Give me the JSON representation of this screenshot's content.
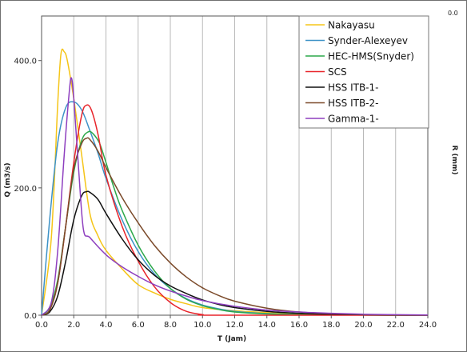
{
  "chart_data": {
    "type": "line",
    "title": "",
    "xlabel": "T (Jam)",
    "ylabel": "Q (m3/s)",
    "y2label": "R (mm)",
    "y2tick": "0.0",
    "xlim": [
      0,
      24
    ],
    "ylim": [
      0,
      470
    ],
    "xticks": [
      0,
      2,
      4,
      6,
      8,
      10,
      12,
      14,
      16,
      18,
      20,
      22,
      24
    ],
    "yticks": [
      0,
      200,
      400
    ],
    "xtick_labels": [
      "0.0",
      "2.0",
      "4.0",
      "6.0",
      "8.0",
      "10.0",
      "12.0",
      "14.0",
      "16.0",
      "18.0",
      "20.0",
      "22.0",
      "24.0"
    ],
    "ytick_labels": [
      "0.0",
      "200.0",
      "400.0"
    ],
    "grid": "vertical",
    "legend_position": "top-right",
    "series": [
      {
        "name": "Nakayasu",
        "color": "#f5c518",
        "x": [
          0,
          0.6,
          1.0,
          1.2,
          1.4,
          1.6,
          2.0,
          2.5,
          3.0,
          3.5,
          4.0,
          5.0,
          6.0,
          7.0,
          8.0,
          9.0,
          10.0,
          12.0,
          14.0,
          16.0,
          18.0,
          20.0,
          22.0,
          24.0
        ],
        "y": [
          0,
          120,
          330,
          410,
          414,
          400,
          340,
          250,
          160,
          125,
          102,
          73,
          48,
          35,
          25,
          18,
          12,
          7,
          4,
          2,
          1,
          0.5,
          0,
          0
        ]
      },
      {
        "name": "Synder-Alexeyev",
        "color": "#3d92c7",
        "x": [
          0,
          0.5,
          1.0,
          1.5,
          2.0,
          2.5,
          3.0,
          3.5,
          4.0,
          5.0,
          6.0,
          7.0,
          8.0,
          9.0,
          10.0,
          11.0,
          12.0,
          14.0,
          16.0,
          18.0,
          20.0,
          22.0,
          24.0
        ],
        "y": [
          0,
          150,
          270,
          326,
          335,
          322,
          290,
          255,
          215,
          150,
          100,
          65,
          42,
          26,
          16,
          10,
          6,
          2.5,
          1,
          0.4,
          0.2,
          0,
          0
        ]
      },
      {
        "name": "HEC-HMS(Snyder)",
        "color": "#2ca84a",
        "x": [
          0,
          0.5,
          1.0,
          1.5,
          2.0,
          2.5,
          2.9,
          3.2,
          3.6,
          4.0,
          4.5,
          5.0,
          6.0,
          7.0,
          8.0,
          9.0,
          10.0,
          11.0,
          12.0,
          14.0,
          16.0,
          18.0,
          20.0,
          24.0
        ],
        "y": [
          0,
          12,
          55,
          140,
          225,
          275,
          288,
          285,
          270,
          240,
          200,
          165,
          110,
          70,
          42,
          25,
          15,
          9,
          5,
          2,
          1,
          0.5,
          0.2,
          0
        ]
      },
      {
        "name": "SCS",
        "color": "#e8252b",
        "x": [
          0,
          0.5,
          1.0,
          1.5,
          2.0,
          2.5,
          2.8,
          3.1,
          3.5,
          4.0,
          5.0,
          6.0,
          7.0,
          8.0,
          9.0,
          10.0,
          11.0,
          24.0
        ],
        "y": [
          0,
          8,
          50,
          140,
          240,
          315,
          330,
          322,
          285,
          220,
          140,
          85,
          45,
          20,
          6,
          1,
          0,
          0
        ]
      },
      {
        "name": "HSS ITB-1-",
        "color": "#111111",
        "x": [
          0,
          0.5,
          1.0,
          1.5,
          2.0,
          2.5,
          2.8,
          3.0,
          3.5,
          4.0,
          5.0,
          6.0,
          7.0,
          8.0,
          9.0,
          10.0,
          11.0,
          12.0,
          14.0,
          16.0,
          18.0,
          20.0,
          22.0,
          24.0
        ],
        "y": [
          0,
          5,
          30,
          85,
          150,
          188,
          194,
          193,
          182,
          160,
          120,
          87,
          63,
          46,
          34,
          24,
          17,
          12,
          6,
          3,
          1.5,
          0.7,
          0.3,
          0.1
        ]
      },
      {
        "name": "HSS ITB-2-",
        "color": "#7b4a2a",
        "x": [
          0,
          0.5,
          1.0,
          1.5,
          2.0,
          2.5,
          2.8,
          3.0,
          3.5,
          4.0,
          5.0,
          6.0,
          7.0,
          8.0,
          9.0,
          10.0,
          11.0,
          12.0,
          14.0,
          16.0,
          18.0,
          20.0,
          22.0,
          24.0
        ],
        "y": [
          0,
          8,
          50,
          140,
          230,
          270,
          278,
          276,
          258,
          232,
          185,
          145,
          110,
          82,
          60,
          43,
          31,
          22,
          11,
          5,
          2.5,
          1,
          0.5,
          0.2
        ]
      },
      {
        "name": "Gamma-1-",
        "color": "#8e3fbf",
        "x": [
          0,
          0.6,
          1.0,
          1.4,
          1.7,
          1.85,
          2.0,
          2.3,
          2.6,
          3.0,
          4.0,
          5.0,
          6.0,
          7.0,
          8.0,
          9.0,
          10.0,
          12.0,
          14.0,
          16.0,
          18.0,
          20.0,
          22.0,
          24.0
        ],
        "y": [
          0,
          20,
          100,
          250,
          345,
          373,
          340,
          230,
          135,
          122,
          95,
          76,
          61,
          48,
          38,
          30,
          23,
          14,
          8,
          5,
          3,
          1.5,
          0.8,
          0.4
        ]
      }
    ]
  }
}
